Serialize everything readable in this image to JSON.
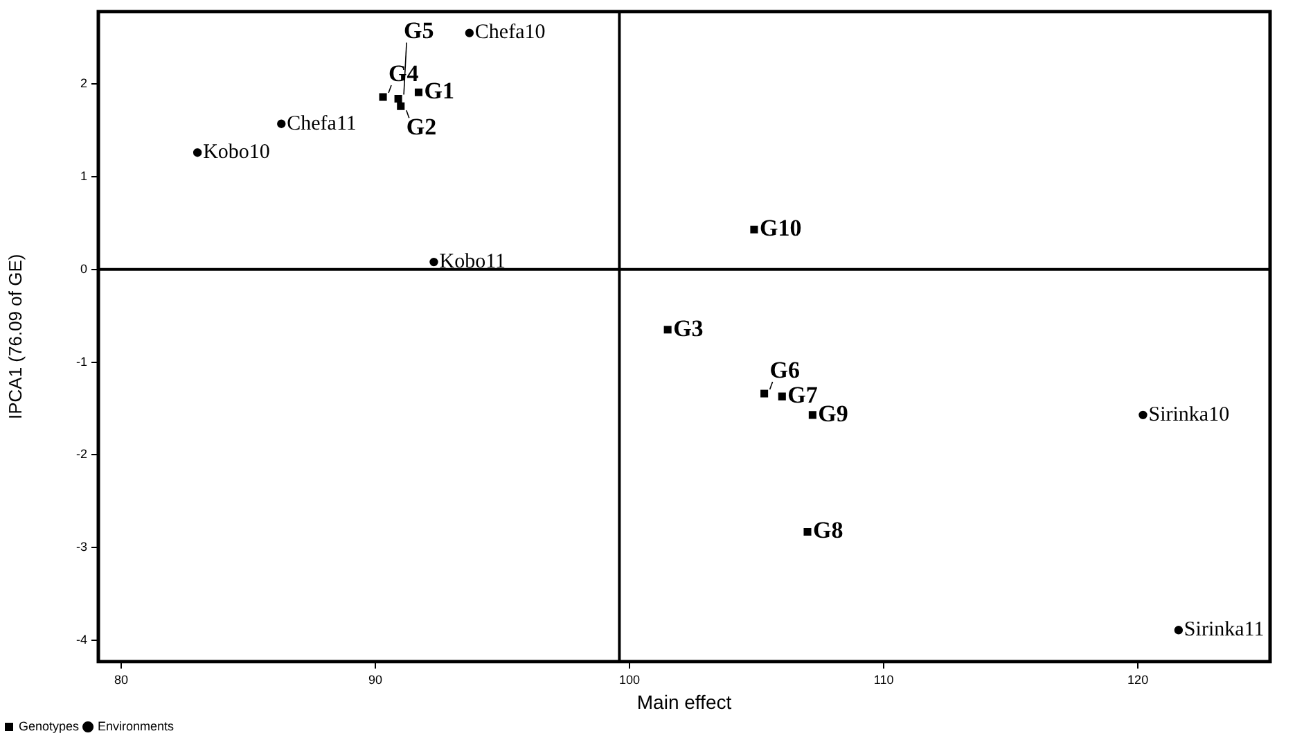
{
  "chart_data": {
    "type": "scatter",
    "xlabel": "Main effect",
    "ylabel": "IPCA1 (76.09 of GE)",
    "xlim": [
      79.1,
      125.2
    ],
    "xticks": [
      80,
      90,
      100,
      110,
      120
    ],
    "ylim": [
      -4.23,
      2.78
    ],
    "yticks": [
      -4,
      -3,
      -2,
      -1,
      0,
      1,
      2
    ],
    "grid": false,
    "legend": "bottom left",
    "ref_lines": [
      {
        "axis": "x",
        "value": 99.6,
        "color": "#000000"
      },
      {
        "axis": "y",
        "value": 0,
        "color": "#000000"
      }
    ],
    "series": [
      {
        "name": "Genotypes",
        "color": "#000000",
        "marker": "square",
        "x": [
          91.7,
          91.0,
          101.5,
          90.3,
          90.9,
          105.3,
          106.0,
          107.0,
          107.2,
          104.9
        ],
        "values": [
          1.91,
          1.76,
          -0.65,
          1.86,
          1.84,
          -1.34,
          -1.37,
          -2.83,
          -1.57,
          0.43
        ]
      },
      {
        "name": "Environments",
        "color": "#000000",
        "marker": "circle",
        "x": [
          93.7,
          86.3,
          83.0,
          92.3,
          120.2,
          121.6
        ],
        "values": [
          2.55,
          1.57,
          1.26,
          0.08,
          -1.57,
          -3.89
        ]
      }
    ],
    "annotations": [
      {
        "text": "G1",
        "x": 91.7,
        "y": 1.91
      },
      {
        "text": "G2",
        "x": 91.0,
        "y": 1.76
      },
      {
        "text": "G3",
        "x": 101.5,
        "y": -0.65
      },
      {
        "text": "G4",
        "x": 90.3,
        "y": 1.86
      },
      {
        "text": "G5",
        "x": 90.9,
        "y": 1.84
      },
      {
        "text": "G6",
        "x": 105.3,
        "y": -1.34
      },
      {
        "text": "G7",
        "x": 106.0,
        "y": -1.37
      },
      {
        "text": "G8",
        "x": 107.0,
        "y": -2.83
      },
      {
        "text": "G9",
        "x": 107.2,
        "y": -1.57
      },
      {
        "text": "G10",
        "x": 104.9,
        "y": 0.43
      },
      {
        "text": "Chefa10",
        "x": 93.7,
        "y": 2.55
      },
      {
        "text": "Chefa11",
        "x": 86.3,
        "y": 1.57
      },
      {
        "text": "Kobo10",
        "x": 83.0,
        "y": 1.26
      },
      {
        "text": "Kobo11",
        "x": 92.3,
        "y": 0.08
      },
      {
        "text": "Sirinka10",
        "x": 120.2,
        "y": -1.57
      },
      {
        "text": "Sirinka11",
        "x": 121.6,
        "y": -3.89
      }
    ]
  }
}
